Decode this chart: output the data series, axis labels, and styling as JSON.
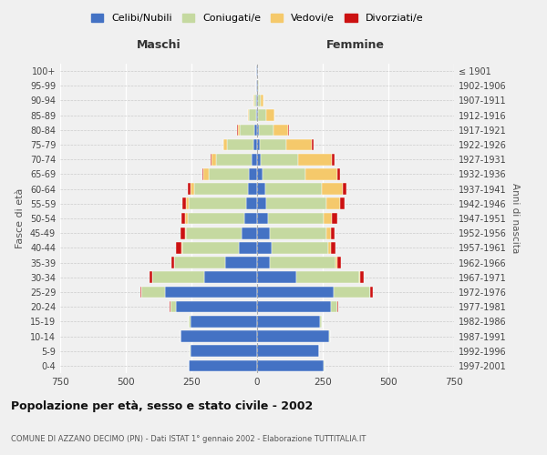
{
  "age_groups": [
    "0-4",
    "5-9",
    "10-14",
    "15-19",
    "20-24",
    "25-29",
    "30-34",
    "35-39",
    "40-44",
    "45-49",
    "50-54",
    "55-59",
    "60-64",
    "65-69",
    "70-74",
    "75-79",
    "80-84",
    "85-89",
    "90-94",
    "95-99",
    "100+"
  ],
  "birth_years": [
    "1997-2001",
    "1992-1996",
    "1987-1991",
    "1982-1986",
    "1977-1981",
    "1972-1976",
    "1967-1971",
    "1962-1966",
    "1957-1961",
    "1952-1956",
    "1947-1951",
    "1942-1946",
    "1937-1941",
    "1932-1936",
    "1927-1931",
    "1922-1926",
    "1917-1921",
    "1912-1916",
    "1907-1911",
    "1902-1906",
    "≤ 1901"
  ],
  "males": {
    "celibe": [
      260,
      255,
      290,
      255,
      310,
      350,
      200,
      120,
      70,
      60,
      50,
      40,
      35,
      30,
      20,
      15,
      10,
      5,
      3,
      2,
      2
    ],
    "coniugato": [
      1,
      1,
      2,
      5,
      20,
      90,
      200,
      195,
      215,
      210,
      215,
      220,
      205,
      155,
      135,
      100,
      55,
      25,
      8,
      2,
      0
    ],
    "vedovo": [
      0,
      0,
      0,
      0,
      0,
      0,
      1,
      2,
      3,
      5,
      8,
      10,
      15,
      20,
      18,
      12,
      8,
      5,
      2,
      0,
      0
    ],
    "divorziato": [
      0,
      0,
      0,
      1,
      2,
      5,
      10,
      10,
      20,
      15,
      15,
      15,
      10,
      5,
      5,
      3,
      2,
      0,
      0,
      0,
      0
    ]
  },
  "females": {
    "nubile": [
      255,
      235,
      275,
      240,
      280,
      290,
      150,
      50,
      55,
      50,
      40,
      35,
      30,
      20,
      15,
      10,
      8,
      5,
      5,
      3,
      2
    ],
    "coniugata": [
      1,
      1,
      2,
      5,
      25,
      140,
      240,
      250,
      215,
      215,
      215,
      230,
      215,
      165,
      140,
      100,
      55,
      30,
      10,
      3,
      0
    ],
    "vedova": [
      0,
      0,
      0,
      0,
      1,
      2,
      3,
      5,
      10,
      15,
      30,
      50,
      80,
      120,
      130,
      100,
      55,
      30,
      10,
      2,
      0
    ],
    "divorziata": [
      0,
      0,
      0,
      1,
      3,
      8,
      12,
      15,
      20,
      15,
      20,
      20,
      15,
      10,
      10,
      5,
      3,
      2,
      0,
      0,
      0
    ]
  },
  "colors": {
    "celibe": "#4472C4",
    "coniugato": "#C5D9A0",
    "vedovo": "#F5C96B",
    "divorziato": "#CC1111"
  },
  "xlim": 750,
  "title": "Popolazione per età, sesso e stato civile - 2002",
  "subtitle": "COMUNE DI AZZANO DECIMO (PN) - Dati ISTAT 1° gennaio 2002 - Elaborazione TUTTITALIA.IT",
  "legend_labels": [
    "Celibi/Nubili",
    "Coniugati/e",
    "Vedovi/e",
    "Divorziati/e"
  ],
  "background_color": "#f0f0f0"
}
